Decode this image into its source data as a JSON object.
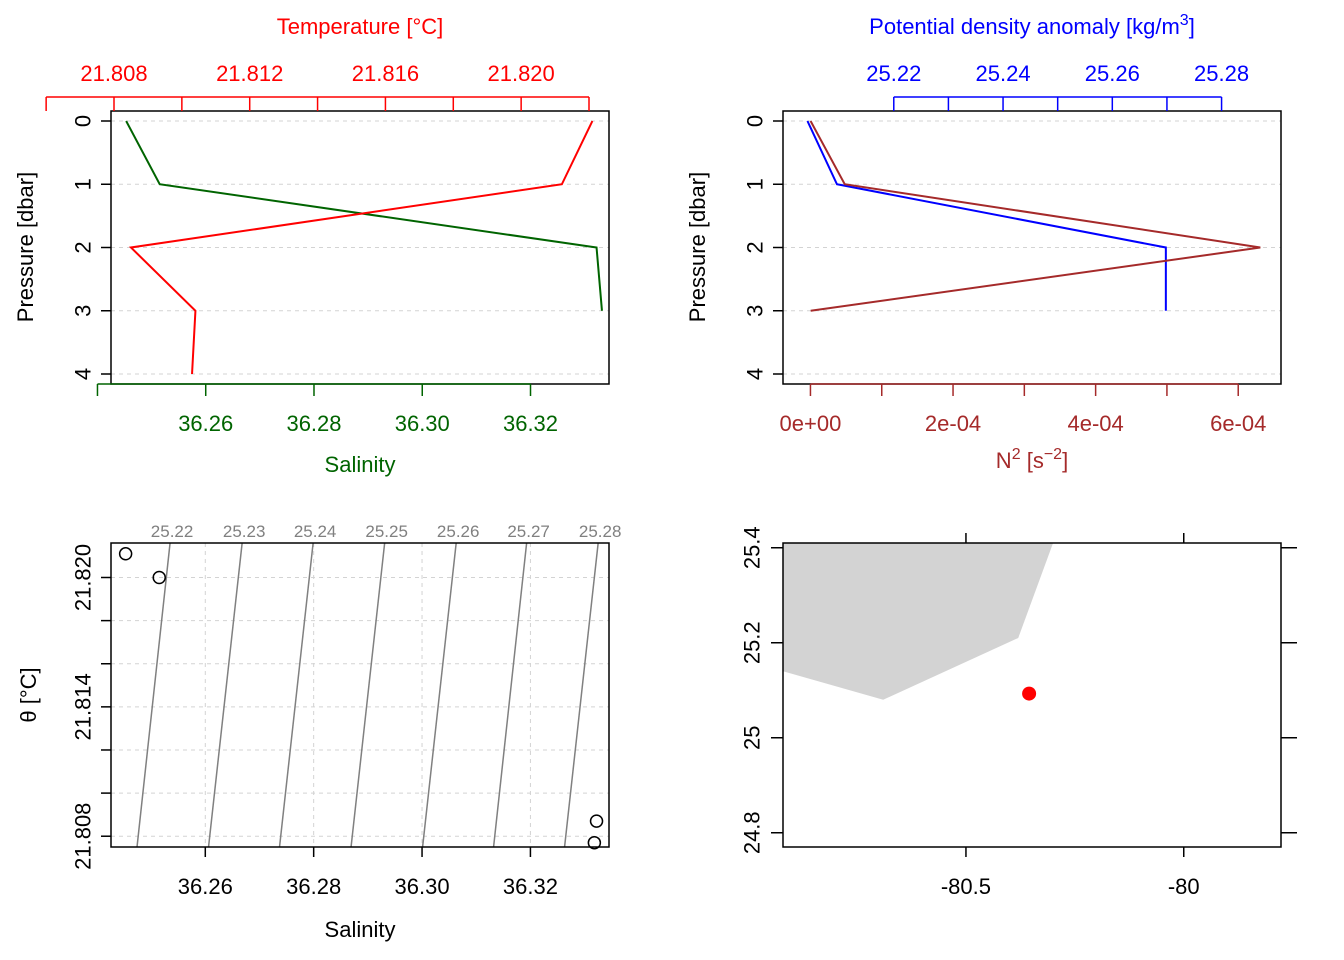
{
  "chart_data": [
    {
      "type": "line",
      "panel": "ctd-profile-temperature-salinity",
      "ylabel": "Pressure [dbar]",
      "yticks": [
        "0",
        "1",
        "2",
        "3",
        "4"
      ],
      "ylim": [
        4,
        0
      ],
      "top_axis": {
        "label": "Temperature [°C]",
        "color": "#ff0000",
        "ticks": [
          21.806,
          21.808,
          21.81,
          21.812,
          21.814,
          21.816,
          21.818,
          21.82,
          21.822
        ],
        "tick_labels": [
          "21.808",
          "21.812",
          "21.816",
          "21.820"
        ],
        "tick_label_values": [
          21.808,
          21.812,
          21.816,
          21.82
        ],
        "lim": [
          21.808,
          21.822
        ]
      },
      "bottom_axis": {
        "label": "Salinity",
        "color": "#006400",
        "ticks": [
          36.24,
          36.26,
          36.28,
          36.3,
          36.32
        ],
        "tick_labels": [
          "36.26",
          "36.28",
          "36.30",
          "36.32"
        ],
        "tick_label_values": [
          36.26,
          36.28,
          36.3,
          36.32
        ],
        "lim": [
          36.2425,
          36.3345
        ]
      },
      "series": [
        {
          "name": "Temperature",
          "color": "#ff0000",
          "pressure": [
            0,
            1,
            2,
            3,
            4
          ],
          "values": [
            21.8221,
            21.8212,
            21.8085,
            21.8104,
            21.8103
          ]
        },
        {
          "name": "Salinity",
          "color": "#006400",
          "pressure": [
            0,
            1,
            2,
            3
          ],
          "values": [
            36.2453,
            36.2515,
            36.3322,
            36.3332
          ]
        }
      ]
    },
    {
      "type": "line",
      "panel": "ctd-profile-density-n2",
      "ylabel": "Pressure [dbar]",
      "yticks": [
        "0",
        "1",
        "2",
        "3",
        "4"
      ],
      "ylim": [
        4,
        0
      ],
      "top_axis": {
        "label": "Potential density anomaly [kg/m3]",
        "label_main": "Potential density anomaly [kg/m",
        "label_sup": "3",
        "label_end": "]",
        "color": "#0000ff",
        "ticks": [
          25.21,
          25.22,
          25.23,
          25.24,
          25.25,
          25.26,
          25.27,
          25.28
        ],
        "tick_labels": [
          "25.22",
          "25.24",
          "25.26",
          "25.28"
        ],
        "tick_label_values": [
          25.22,
          25.24,
          25.26,
          25.28
        ],
        "lim": [
          25.2032,
          25.2874
        ]
      },
      "bottom_axis": {
        "label": "N2 [s-2]",
        "label_parts": {
          "n": "N",
          "n_sup": "2",
          "mid": " [s",
          "s_sup": "−2",
          "end": "]"
        },
        "color": "#a52a2a",
        "ticks": [
          0,
          0.0001,
          0.0002,
          0.0003,
          0.0004,
          0.0005,
          0.0006
        ],
        "tick_labels": [
          "0e+00",
          "2e-04",
          "4e-04",
          "6e-04"
        ],
        "tick_label_values": [
          0,
          0.0002,
          0.0004,
          0.0006
        ],
        "lim": [
          -3.85e-05,
          0.00066
        ]
      },
      "series": [
        {
          "name": "Potential density anomaly",
          "color": "#0000ff",
          "pressure": [
            0,
            1,
            2,
            3
          ],
          "values": [
            25.2042,
            25.2096,
            25.2698,
            25.2698
          ]
        },
        {
          "name": "N2",
          "color": "#a52a2a",
          "pressure": [
            0,
            1,
            2,
            3
          ],
          "values": [
            2e-07,
            4.81e-05,
            0.000631,
            3e-07
          ]
        }
      ]
    },
    {
      "type": "scatter",
      "panel": "ts-diagram",
      "xlabel": "Salinity",
      "ylabel": "θ [°C]",
      "xticks": [
        36.26,
        36.28,
        36.3,
        36.32
      ],
      "xtick_labels": [
        "36.26",
        "36.28",
        "36.30",
        "36.32"
      ],
      "yticks": [
        21.808,
        21.81,
        21.812,
        21.814,
        21.816,
        21.818,
        21.82
      ],
      "ytick_labels": [
        "21.808",
        "",
        "21.814",
        "",
        "21.820"
      ],
      "ytick_label_values": [
        21.808,
        21.811,
        21.814,
        21.817,
        21.82
      ],
      "xlim": [
        36.2426,
        36.3345
      ],
      "ylim": [
        21.8075,
        21.8216
      ],
      "points": [
        {
          "x": 36.2453,
          "y": 21.8211
        },
        {
          "x": 36.2515,
          "y": 21.82
        },
        {
          "x": 36.3322,
          "y": 21.8087
        },
        {
          "x": 36.3318,
          "y": 21.8077
        }
      ],
      "isopycnals": [
        {
          "label": "25.22",
          "x_bottom": 36.2474,
          "x_top": 36.2535
        },
        {
          "label": "25.23",
          "x_bottom": 36.2606,
          "x_top": 36.2668
        },
        {
          "label": "25.24",
          "x_bottom": 36.2737,
          "x_top": 36.2799
        },
        {
          "label": "25.25",
          "x_bottom": 36.2869,
          "x_top": 36.2931
        },
        {
          "label": "25.26",
          "x_bottom": 36.3001,
          "x_top": 36.3063
        },
        {
          "label": "25.27",
          "x_bottom": 36.3132,
          "x_top": 36.3193
        },
        {
          "label": "25.28",
          "x_bottom": 36.3263,
          "x_top": 36.3325
        }
      ],
      "grid": true,
      "colors": {
        "isopycnal": "#808080",
        "points": "#000000"
      }
    },
    {
      "type": "map",
      "panel": "station-map",
      "xticks": [
        -80.5,
        -80
      ],
      "xtick_labels": [
        "-80.5",
        "-80"
      ],
      "yticks": [
        24.8,
        25,
        25.2,
        25.4
      ],
      "ytick_labels": [
        "24.8",
        "25",
        "25.2",
        "25.4"
      ],
      "xlim": [
        -80.92,
        -79.74
      ],
      "ylim": [
        24.77,
        25.41
      ],
      "land": [
        [
          -80.92,
          25.41
        ],
        [
          -80.3,
          25.41
        ],
        [
          -80.38,
          25.21
        ],
        [
          -80.69,
          25.08
        ],
        [
          -80.92,
          25.14
        ]
      ],
      "station": {
        "lon": -80.355,
        "lat": 25.093
      },
      "colors": {
        "land": "#d3d3d3",
        "station": "#ff0000"
      }
    }
  ]
}
